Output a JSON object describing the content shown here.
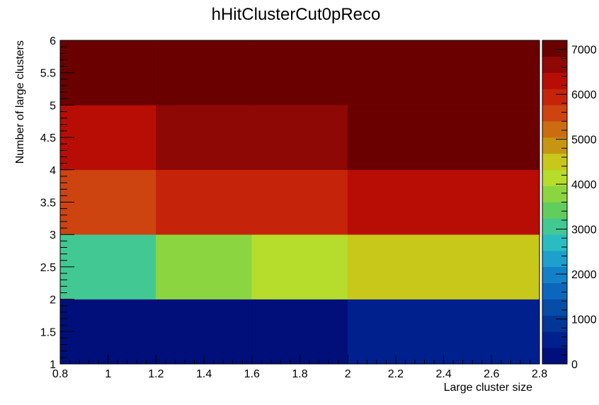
{
  "chart_data": {
    "type": "heatmap",
    "title": "hHitClusterCut0pReco",
    "xlabel": "Large cluster size",
    "ylabel": "Number of large clusters",
    "xlim": [
      0.8,
      2.8
    ],
    "ylim": [
      1,
      6
    ],
    "x_ticks": [
      "0.8",
      "1",
      "1.2",
      "1.4",
      "1.6",
      "1.8",
      "2",
      "2.2",
      "2.4",
      "2.6",
      "2.8"
    ],
    "y_ticks": [
      "1",
      "1.5",
      "2",
      "2.5",
      "3",
      "3.5",
      "4",
      "4.5",
      "5",
      "5.5",
      "6"
    ],
    "x_edges": [
      0.8,
      1.2,
      1.6,
      2.0,
      2.8
    ],
    "y_edges": [
      1,
      2,
      3,
      4,
      5,
      6
    ],
    "values": [
      [
        100,
        100,
        100,
        700
      ],
      [
        3200,
        3600,
        4100,
        4500
      ],
      [
        5600,
        6100,
        6100,
        6300
      ],
      [
        6300,
        6700,
        6700,
        7000
      ],
      [
        7000,
        7000,
        7000,
        7000
      ]
    ],
    "zlim": [
      0,
      7200
    ],
    "z_ticks": [
      "0",
      "1000",
      "2000",
      "3000",
      "4000",
      "5000",
      "6000",
      "7000"
    ],
    "palette": [
      "#000f7a",
      "#00208d",
      "#033797",
      "#054da6",
      "#0b66be",
      "#1381c8",
      "#1ea0cc",
      "#2bbcc0",
      "#42c993",
      "#61cd5d",
      "#8bd640",
      "#b6dc2c",
      "#c8c81a",
      "#c69512",
      "#cc6c10",
      "#cd4410",
      "#c6240a",
      "#b70d05",
      "#8e0805",
      "#6b0000"
    ]
  }
}
